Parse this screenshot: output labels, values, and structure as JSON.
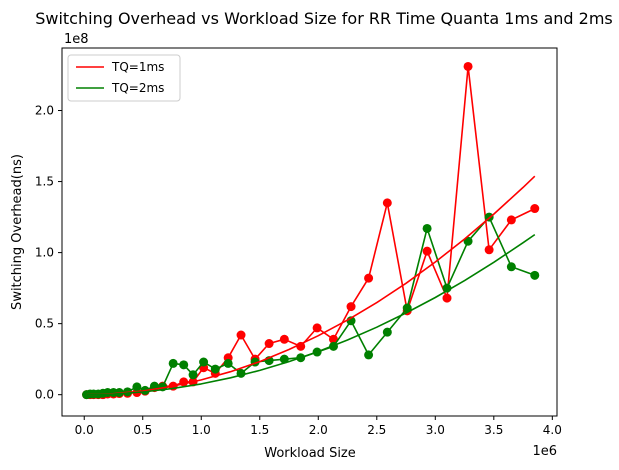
{
  "chart_data": {
    "type": "line",
    "title": "Switching Overhead vs Workload Size for RR Time Quanta 1ms and 2ms",
    "xlabel": "Workload Size",
    "ylabel": "Switching Overhead(ns)",
    "x_scale_label": "1e6",
    "y_scale_label": "1e8",
    "xlim": [
      -0.19,
      4.04
    ],
    "ylim": [
      -0.15,
      2.44
    ],
    "x_ticks": [
      0.0,
      0.5,
      1.0,
      1.5,
      2.0,
      2.5,
      3.0,
      3.5,
      4.0
    ],
    "x_tick_labels": [
      "0.0",
      "0.5",
      "1.0",
      "1.5",
      "2.0",
      "2.5",
      "3.0",
      "3.5",
      "4.0"
    ],
    "y_ticks": [
      0.0,
      0.5,
      1.0,
      1.5,
      2.0
    ],
    "y_tick_labels": [
      "0.0",
      "0.5",
      "1.0",
      "1.5",
      "2.0"
    ],
    "legend_position": "top-left",
    "grid": false,
    "series": [
      {
        "name": "",
        "color": "#ff0000",
        "style": "line-markers",
        "points": [
          [
            0.02,
            0.0
          ],
          [
            0.05,
            0.0
          ],
          [
            0.08,
            0.0
          ],
          [
            0.12,
            0.0
          ],
          [
            0.16,
            0.0
          ],
          [
            0.2,
            0.005
          ],
          [
            0.25,
            0.005
          ],
          [
            0.3,
            0.008
          ],
          [
            0.37,
            0.01
          ],
          [
            0.45,
            0.015
          ],
          [
            0.52,
            0.025
          ],
          [
            0.6,
            0.05
          ],
          [
            0.67,
            0.06
          ],
          [
            0.76,
            0.06
          ],
          [
            0.85,
            0.09
          ],
          [
            0.93,
            0.09
          ],
          [
            1.02,
            0.19
          ],
          [
            1.12,
            0.15
          ],
          [
            1.23,
            0.26
          ],
          [
            1.34,
            0.42
          ],
          [
            1.46,
            0.25
          ],
          [
            1.58,
            0.36
          ],
          [
            1.71,
            0.39
          ],
          [
            1.85,
            0.34
          ],
          [
            1.99,
            0.47
          ],
          [
            2.13,
            0.39
          ],
          [
            2.28,
            0.62
          ],
          [
            2.43,
            0.82
          ],
          [
            2.59,
            1.35
          ],
          [
            2.76,
            0.59
          ],
          [
            2.93,
            1.01
          ],
          [
            3.1,
            0.68
          ],
          [
            3.28,
            2.31
          ],
          [
            3.46,
            1.02
          ],
          [
            3.65,
            1.23
          ],
          [
            3.85,
            1.31
          ]
        ]
      },
      {
        "name": "",
        "color": "#008000",
        "style": "line-markers",
        "points": [
          [
            0.02,
            0.0
          ],
          [
            0.05,
            0.005
          ],
          [
            0.08,
            0.005
          ],
          [
            0.12,
            0.005
          ],
          [
            0.16,
            0.01
          ],
          [
            0.2,
            0.015
          ],
          [
            0.25,
            0.015
          ],
          [
            0.3,
            0.015
          ],
          [
            0.37,
            0.02
          ],
          [
            0.45,
            0.055
          ],
          [
            0.52,
            0.03
          ],
          [
            0.6,
            0.06
          ],
          [
            0.67,
            0.055
          ],
          [
            0.76,
            0.22
          ],
          [
            0.85,
            0.21
          ],
          [
            0.93,
            0.14
          ],
          [
            1.02,
            0.23
          ],
          [
            1.12,
            0.18
          ],
          [
            1.23,
            0.22
          ],
          [
            1.34,
            0.15
          ],
          [
            1.46,
            0.23
          ],
          [
            1.58,
            0.24
          ],
          [
            1.71,
            0.25
          ],
          [
            1.85,
            0.26
          ],
          [
            1.99,
            0.3
          ],
          [
            2.13,
            0.34
          ],
          [
            2.28,
            0.52
          ],
          [
            2.43,
            0.28
          ],
          [
            2.59,
            0.44
          ],
          [
            2.76,
            0.61
          ],
          [
            2.93,
            1.17
          ],
          [
            3.1,
            0.75
          ],
          [
            3.28,
            1.08
          ],
          [
            3.46,
            1.25
          ],
          [
            3.65,
            0.9
          ],
          [
            3.85,
            0.84
          ]
        ]
      },
      {
        "name": "TQ=1ms",
        "color": "#ff0000",
        "style": "line",
        "points": [
          [
            0.02,
            0.0
          ],
          [
            0.25,
            0.007
          ],
          [
            0.5,
            0.026
          ],
          [
            0.75,
            0.058
          ],
          [
            1.0,
            0.104
          ],
          [
            1.25,
            0.162
          ],
          [
            1.5,
            0.233
          ],
          [
            1.75,
            0.318
          ],
          [
            2.0,
            0.415
          ],
          [
            2.25,
            0.525
          ],
          [
            2.5,
            0.648
          ],
          [
            2.75,
            0.784
          ],
          [
            3.0,
            0.934
          ],
          [
            3.25,
            1.096
          ],
          [
            3.5,
            1.271
          ],
          [
            3.75,
            1.459
          ],
          [
            3.85,
            1.538
          ]
        ]
      },
      {
        "name": "TQ=2ms",
        "color": "#008000",
        "style": "line",
        "points": [
          [
            0.02,
            0.0
          ],
          [
            0.25,
            0.005
          ],
          [
            0.5,
            0.019
          ],
          [
            0.75,
            0.043
          ],
          [
            1.0,
            0.076
          ],
          [
            1.25,
            0.119
          ],
          [
            1.5,
            0.171
          ],
          [
            1.75,
            0.233
          ],
          [
            2.0,
            0.304
          ],
          [
            2.25,
            0.385
          ],
          [
            2.5,
            0.475
          ],
          [
            2.75,
            0.575
          ],
          [
            3.0,
            0.684
          ],
          [
            3.25,
            0.803
          ],
          [
            3.5,
            0.932
          ],
          [
            3.75,
            1.07
          ],
          [
            3.85,
            1.127
          ]
        ]
      }
    ]
  }
}
